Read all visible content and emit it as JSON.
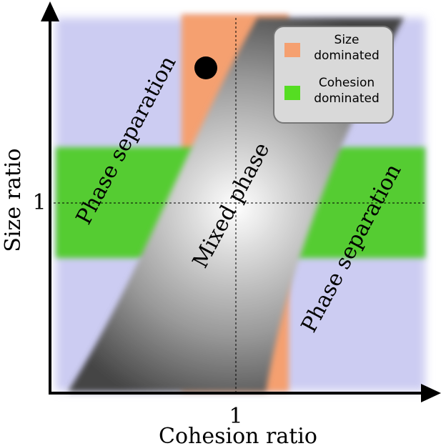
{
  "axes": {
    "x_label": "Cohesion ratio",
    "y_label": "Size ratio",
    "x_tick": "1",
    "y_tick": "1"
  },
  "regions": [
    {
      "label": "Phase separation"
    },
    {
      "label": "Mixed phase"
    },
    {
      "label": "Phase separation"
    }
  ],
  "legend": [
    {
      "label": "Size\ndominated",
      "color": "#f5a070"
    },
    {
      "label": "Cohesion\ndominated",
      "color": "#55dd22"
    }
  ]
}
